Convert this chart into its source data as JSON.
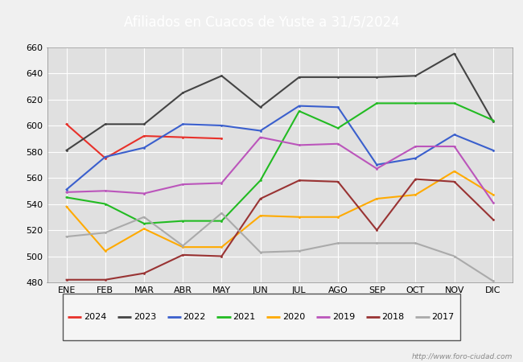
{
  "title": "Afiliados en Cuacos de Yuste a 31/5/2024",
  "months": [
    "ENE",
    "FEB",
    "MAR",
    "ABR",
    "MAY",
    "JUN",
    "JUL",
    "AGO",
    "SEP",
    "OCT",
    "NOV",
    "DIC"
  ],
  "ylim": [
    480,
    660
  ],
  "yticks": [
    480,
    500,
    520,
    540,
    560,
    580,
    600,
    620,
    640,
    660
  ],
  "series": {
    "2024": {
      "color": "#e8312a",
      "values": [
        601,
        575,
        592,
        591,
        590,
        null,
        null,
        null,
        null,
        null,
        null,
        null
      ]
    },
    "2023": {
      "color": "#444444",
      "values": [
        581,
        601,
        601,
        625,
        638,
        614,
        637,
        637,
        637,
        638,
        655,
        603
      ]
    },
    "2022": {
      "color": "#3a5fcd",
      "values": [
        551,
        576,
        583,
        601,
        600,
        596,
        615,
        614,
        570,
        575,
        593,
        581
      ]
    },
    "2021": {
      "color": "#22bb22",
      "values": [
        545,
        540,
        525,
        527,
        527,
        558,
        611,
        598,
        617,
        617,
        617,
        604
      ]
    },
    "2020": {
      "color": "#ffaa00",
      "values": [
        538,
        504,
        521,
        507,
        507,
        531,
        530,
        530,
        544,
        547,
        565,
        547
      ]
    },
    "2019": {
      "color": "#bb55bb",
      "values": [
        549,
        550,
        548,
        555,
        556,
        591,
        585,
        586,
        567,
        584,
        584,
        541
      ]
    },
    "2018": {
      "color": "#993333",
      "values": [
        482,
        482,
        487,
        501,
        500,
        544,
        558,
        557,
        520,
        559,
        557,
        528
      ]
    },
    "2017": {
      "color": "#aaaaaa",
      "values": [
        515,
        518,
        530,
        508,
        533,
        503,
        504,
        510,
        510,
        510,
        500,
        481
      ]
    }
  },
  "title_bg_color": "#4472c4",
  "title_text_color": "#ffffff",
  "plot_bg_color": "#e0e0e0",
  "grid_color": "#ffffff",
  "fig_bg_color": "#f0f0f0",
  "watermark": "http://www.foro-ciudad.com"
}
